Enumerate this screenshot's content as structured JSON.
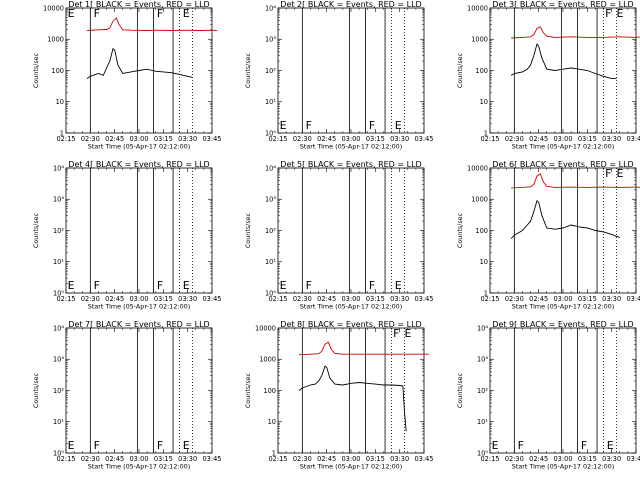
{
  "figure": {
    "x_ticks": [
      "02:15",
      "02:30",
      "02:45",
      "03:00",
      "03:15",
      "03:30",
      "03:45"
    ],
    "xlabel": "Start Time (05-Apr-17 02:12:00)",
    "ylabel": "Counts/sec",
    "event_lines": [
      {
        "t": "02:30",
        "style": "solid"
      },
      {
        "t": "02:59",
        "style": "solid"
      },
      {
        "t": "03:09",
        "style": "solid"
      },
      {
        "t": "03:21",
        "style": "solid"
      },
      {
        "t": "03:25",
        "style": "dotted"
      },
      {
        "t": "03:33",
        "style": "dotted"
      }
    ],
    "colors": {
      "events": "#000000",
      "lld": "#cc0000"
    }
  },
  "chart_data": [
    {
      "type": "line",
      "title": "Det 1[ BLACK = Events, RED = LLD",
      "yscale": "log",
      "ylim": [
        1,
        10000
      ],
      "y_ticks": [
        "1",
        "10",
        "100",
        "1000",
        "10000"
      ],
      "markers": [
        {
          "t": "02:16",
          "label": "E"
        },
        {
          "t": "02:32",
          "label": "F"
        },
        {
          "t": "03:11",
          "label": "F"
        },
        {
          "t": "03:27",
          "label": "E"
        }
      ],
      "series": [
        {
          "color": "red",
          "x": [
            "02:28",
            "02:35",
            "02:40",
            "02:42",
            "02:44",
            "02:46",
            "02:48",
            "02:50",
            "02:55",
            "03:05",
            "03:10",
            "03:20",
            "03:30",
            "03:38",
            "03:45",
            "03:48"
          ],
          "y": [
            1900,
            2000,
            2050,
            2300,
            3800,
            4800,
            2800,
            2000,
            1950,
            1900,
            1950,
            1900,
            1950,
            1900,
            1950,
            1900
          ]
        },
        {
          "color": "black",
          "x": [
            "02:28",
            "02:30",
            "02:35",
            "02:38",
            "02:40",
            "02:42",
            "02:44",
            "02:45",
            "02:47",
            "02:50",
            "02:55",
            "03:00",
            "03:05",
            "03:10",
            "03:15",
            "03:20",
            "03:25",
            "03:30",
            "03:33"
          ],
          "y": [
            55,
            65,
            80,
            70,
            120,
            200,
            500,
            450,
            150,
            80,
            90,
            100,
            110,
            95,
            90,
            85,
            75,
            65,
            60
          ]
        }
      ]
    },
    {
      "type": "line",
      "title": "Det 2[ BLACK = Events, RED = LLD",
      "yscale": "log",
      "ylim": [
        1,
        10000
      ],
      "y_ticks": [
        "10⁰",
        "10¹",
        "10²",
        "10³",
        "10⁴"
      ],
      "markers": [
        {
          "t": "02:16",
          "label": "E"
        },
        {
          "t": "02:32",
          "label": "F"
        },
        {
          "t": "03:11",
          "label": "F"
        },
        {
          "t": "03:27",
          "label": "E"
        }
      ],
      "series": []
    },
    {
      "type": "line",
      "title": "Det 3[ BLACK = Events, RED = LLD",
      "yscale": "log",
      "ylim": [
        1,
        10000
      ],
      "y_ticks": [
        "1",
        "10",
        "100",
        "1000",
        "10000"
      ],
      "markers": [
        {
          "t": "03:26",
          "label": "F"
        },
        {
          "t": "03:33",
          "label": "E"
        }
      ],
      "series": [
        {
          "color": "red",
          "x": [
            "02:28",
            "02:35",
            "02:40",
            "02:42",
            "02:44",
            "02:46",
            "02:48",
            "02:50",
            "02:55",
            "03:05",
            "03:15",
            "03:25",
            "03:35",
            "03:45",
            "03:48"
          ],
          "y": [
            1100,
            1150,
            1200,
            1400,
            2200,
            2500,
            1600,
            1250,
            1150,
            1200,
            1150,
            1150,
            1200,
            1150,
            1200
          ]
        },
        {
          "color": "black",
          "x": [
            "02:28",
            "02:30",
            "02:35",
            "02:38",
            "02:40",
            "02:42",
            "02:44",
            "02:45",
            "02:47",
            "02:50",
            "02:55",
            "03:00",
            "03:05",
            "03:10",
            "03:15",
            "03:20",
            "03:25",
            "03:30",
            "03:33"
          ],
          "y": [
            70,
            80,
            90,
            110,
            150,
            300,
            700,
            600,
            250,
            110,
            100,
            110,
            120,
            110,
            100,
            80,
            65,
            55,
            55
          ]
        }
      ]
    },
    {
      "type": "line",
      "title": "Det 4[ BLACK = Events, RED = LLD",
      "yscale": "log",
      "ylim": [
        1,
        10000
      ],
      "y_ticks": [
        "10⁰",
        "10¹",
        "10²",
        "10³",
        "10⁴"
      ],
      "markers": [
        {
          "t": "02:16",
          "label": "E"
        },
        {
          "t": "02:32",
          "label": "F"
        },
        {
          "t": "03:11",
          "label": "F"
        },
        {
          "t": "03:27",
          "label": "E"
        }
      ],
      "series": []
    },
    {
      "type": "line",
      "title": "Det 5[ BLACK = Events, RED = LLD",
      "yscale": "log",
      "ylim": [
        1,
        10000
      ],
      "y_ticks": [
        "10⁰",
        "10¹",
        "10²",
        "10³",
        "10⁴"
      ],
      "markers": [
        {
          "t": "02:16",
          "label": "E"
        },
        {
          "t": "02:32",
          "label": "F"
        },
        {
          "t": "03:11",
          "label": "F"
        },
        {
          "t": "03:27",
          "label": "E"
        }
      ],
      "series": []
    },
    {
      "type": "line",
      "title": "Det 6[ BLACK = Events, RED = LLD",
      "yscale": "log",
      "ylim": [
        1,
        10000
      ],
      "y_ticks": [
        "1",
        "10",
        "100",
        "1000",
        "10000"
      ],
      "markers": [
        {
          "t": "03:26",
          "label": "F"
        },
        {
          "t": "03:33",
          "label": "E"
        }
      ],
      "series": [
        {
          "color": "red",
          "x": [
            "02:28",
            "02:35",
            "02:40",
            "02:42",
            "02:44",
            "02:46",
            "02:48",
            "02:50",
            "02:55",
            "03:05",
            "03:15",
            "03:25",
            "03:35",
            "03:45",
            "03:48"
          ],
          "y": [
            2300,
            2400,
            2500,
            3000,
            5500,
            6500,
            3500,
            2600,
            2400,
            2450,
            2400,
            2450,
            2400,
            2450,
            2400
          ]
        },
        {
          "color": "black",
          "x": [
            "02:28",
            "02:30",
            "02:35",
            "02:38",
            "02:40",
            "02:42",
            "02:44",
            "02:45",
            "02:47",
            "02:50",
            "02:55",
            "03:00",
            "03:05",
            "03:10",
            "03:15",
            "03:20",
            "03:25",
            "03:30",
            "03:33",
            "03:35"
          ],
          "y": [
            55,
            70,
            100,
            150,
            200,
            400,
            900,
            800,
            300,
            120,
            110,
            120,
            150,
            130,
            120,
            100,
            90,
            75,
            65,
            60
          ]
        }
      ]
    },
    {
      "type": "line",
      "title": "Det 7[ BLACK = Events, RED = LLD",
      "yscale": "log",
      "ylim": [
        1,
        10000
      ],
      "y_ticks": [
        "10⁰",
        "10¹",
        "10²",
        "10³",
        "10⁴"
      ],
      "markers": [
        {
          "t": "02:16",
          "label": "E"
        },
        {
          "t": "02:32",
          "label": "F"
        },
        {
          "t": "03:11",
          "label": "F"
        },
        {
          "t": "03:27",
          "label": "E"
        }
      ],
      "series": []
    },
    {
      "type": "line",
      "title": "Det 8[ BLACK = Events, RED = LLD",
      "yscale": "log",
      "ylim": [
        1,
        10000
      ],
      "y_ticks": [
        "1",
        "10",
        "100",
        "1000",
        "10000"
      ],
      "markers": [
        {
          "t": "03:26",
          "label": "F"
        },
        {
          "t": "03:33",
          "label": "E"
        }
      ],
      "series": [
        {
          "color": "red",
          "x": [
            "02:28",
            "02:35",
            "02:40",
            "02:42",
            "02:44",
            "02:46",
            "02:48",
            "02:50",
            "02:55",
            "03:05",
            "03:15",
            "03:25",
            "03:35",
            "03:45",
            "03:48"
          ],
          "y": [
            1400,
            1450,
            1500,
            1800,
            3000,
            3500,
            2000,
            1550,
            1450,
            1450,
            1450,
            1450,
            1450,
            1450,
            1450
          ]
        },
        {
          "color": "black",
          "x": [
            "02:28",
            "02:30",
            "02:35",
            "02:38",
            "02:40",
            "02:42",
            "02:44",
            "02:45",
            "02:47",
            "02:50",
            "02:55",
            "03:00",
            "03:05",
            "03:10",
            "03:15",
            "03:20",
            "03:25",
            "03:30",
            "03:32",
            "03:33",
            "03:34"
          ],
          "y": [
            100,
            120,
            150,
            160,
            200,
            300,
            600,
            550,
            250,
            160,
            150,
            170,
            180,
            170,
            160,
            150,
            150,
            145,
            140,
            20,
            5
          ]
        }
      ]
    },
    {
      "type": "line",
      "title": "Det 9[ BLACK = Events, RED = LLD",
      "yscale": "log",
      "ylim": [
        1,
        10000
      ],
      "y_ticks": [
        "10⁰",
        "10¹",
        "10²",
        "10³",
        "10⁴"
      ],
      "markers": [
        {
          "t": "02:16",
          "label": "E"
        },
        {
          "t": "02:32",
          "label": "F"
        },
        {
          "t": "03:11",
          "label": "F"
        },
        {
          "t": "03:27",
          "label": "E"
        }
      ],
      "series": []
    }
  ]
}
